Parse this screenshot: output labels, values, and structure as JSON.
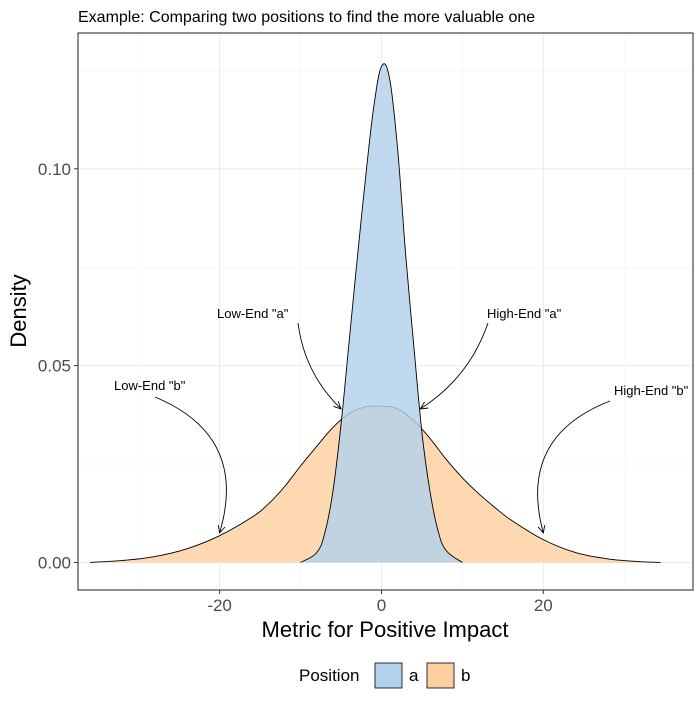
{
  "chart_data": {
    "type": "area",
    "title": "Example: Comparing two positions to find the more valuable one",
    "xlabel": "Metric for Positive Impact",
    "ylabel": "Density",
    "xlim": [
      -37.5,
      38.5
    ],
    "ylim": [
      -0.007,
      0.1345
    ],
    "x_ticks": [
      -20,
      0,
      20
    ],
    "x_tick_labels": [
      "-20",
      "0",
      "20"
    ],
    "y_ticks": [
      0.0,
      0.05,
      0.1
    ],
    "y_tick_labels": [
      "0.00",
      "0.05",
      "0.10"
    ],
    "grid": true,
    "legend": {
      "title": "Position",
      "position": "bottom"
    },
    "series": [
      {
        "name": "b",
        "color": "#fdcf9f",
        "x": [
          -36,
          -32,
          -28,
          -24,
          -20,
          -16,
          -14,
          -12,
          -10,
          -8,
          -6,
          -4,
          -2,
          0,
          2,
          4,
          6,
          8,
          10,
          12,
          14,
          16,
          20,
          24,
          28,
          32,
          34.5
        ],
        "y": [
          0.0,
          0.0005,
          0.0015,
          0.0035,
          0.0068,
          0.0115,
          0.0148,
          0.0192,
          0.0245,
          0.0295,
          0.0343,
          0.0378,
          0.0395,
          0.0397,
          0.039,
          0.036,
          0.0315,
          0.0262,
          0.0215,
          0.0175,
          0.014,
          0.0108,
          0.0058,
          0.0025,
          0.0009,
          0.0002,
          0.0
        ]
      },
      {
        "name": "a",
        "color": "#b3d1ea",
        "x": [
          -10,
          -8,
          -7,
          -6,
          -5,
          -4,
          -3,
          -2,
          -1,
          0,
          1,
          2,
          3,
          4,
          5,
          6,
          7,
          8,
          10
        ],
        "y": [
          0.0,
          0.0025,
          0.0075,
          0.018,
          0.035,
          0.056,
          0.077,
          0.097,
          0.115,
          0.126,
          0.123,
          0.105,
          0.078,
          0.055,
          0.033,
          0.018,
          0.008,
          0.003,
          0.0
        ]
      }
    ],
    "annotations": [
      {
        "text": "Low-End \"b\"",
        "target": [
          -20,
          0.0075
        ]
      },
      {
        "text": "Low-End \"a\"",
        "target": [
          -5,
          0.039
        ]
      },
      {
        "text": "High-End \"a\"",
        "target": [
          4.8,
          0.039
        ]
      },
      {
        "text": "High-End \"b\"",
        "target": [
          20,
          0.0075
        ]
      }
    ]
  }
}
